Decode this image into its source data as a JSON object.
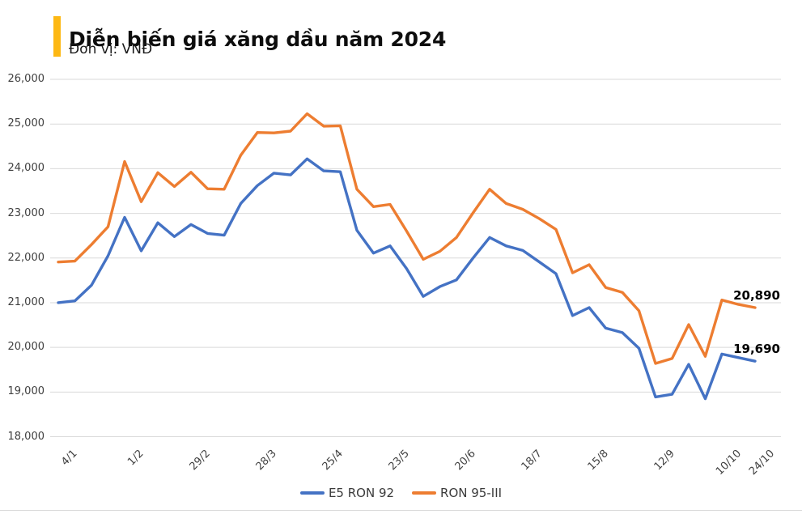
{
  "header": {
    "title": "Diễn biến giá xăng dầu năm 2024",
    "subtitle": "Đơn vị: VNĐ",
    "accent_color": "#FDB813"
  },
  "chart_data": {
    "type": "line",
    "title": "Diễn biến giá xăng dầu năm 2024",
    "unit": "VNĐ",
    "ylim": [
      18000,
      26000
    ],
    "y_tick_step": 1000,
    "y_tick_labels": [
      "26,000",
      "25,000",
      "24,000",
      "23,000",
      "22,000",
      "21,000",
      "20,000",
      "19,000",
      "18,000"
    ],
    "grid": "horizontal",
    "gridline_color": "#D9D9D9",
    "legend_position": "bottom",
    "x_ticks": [
      {
        "index": 0,
        "label": "4/1"
      },
      {
        "index": 4,
        "label": "1/2"
      },
      {
        "index": 8,
        "label": "29/2"
      },
      {
        "index": 12,
        "label": "28/3"
      },
      {
        "index": 16,
        "label": "25/4"
      },
      {
        "index": 20,
        "label": "23/5"
      },
      {
        "index": 24,
        "label": "20/6"
      },
      {
        "index": 28,
        "label": "18/7"
      },
      {
        "index": 32,
        "label": "15/8"
      },
      {
        "index": 36,
        "label": "12/9"
      },
      {
        "index": 40,
        "label": "10/10"
      },
      {
        "index": 42,
        "label": "24/10"
      }
    ],
    "series": [
      {
        "name": "E5 RON 92",
        "color": "#4472C4",
        "end_label": "19,690",
        "values": [
          21000,
          21040,
          21390,
          22050,
          22910,
          22160,
          22790,
          22480,
          22750,
          22550,
          22510,
          23220,
          23620,
          23900,
          23860,
          24220,
          23950,
          23930,
          22620,
          22110,
          22270,
          21760,
          21140,
          21360,
          21510,
          22000,
          22460,
          22270,
          22170,
          21910,
          21650,
          20710,
          20890,
          20430,
          20330,
          19980,
          18890,
          18950,
          19620,
          18850,
          19850,
          19770,
          19690
        ]
      },
      {
        "name": "RON 95-III",
        "color": "#ED7D31",
        "end_label": "20,890",
        "values": [
          21910,
          21930,
          22300,
          22700,
          24160,
          23260,
          23910,
          23600,
          23920,
          23550,
          23540,
          24300,
          24810,
          24800,
          24840,
          25230,
          24950,
          24960,
          23540,
          23150,
          23200,
          22600,
          21970,
          22150,
          22460,
          23010,
          23540,
          23220,
          23090,
          22880,
          22640,
          21670,
          21850,
          21340,
          21230,
          20820,
          19640,
          19750,
          20510,
          19800,
          21060,
          20960,
          20890
        ]
      }
    ]
  }
}
